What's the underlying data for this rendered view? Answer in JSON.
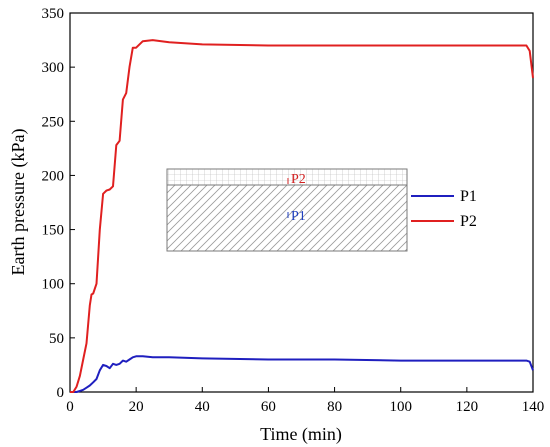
{
  "chart_data": {
    "type": "line",
    "title": "",
    "xlabel": "Time (min)",
    "ylabel": "Earth pressure (kPa)",
    "xlim": [
      0,
      140
    ],
    "ylim": [
      0,
      350
    ],
    "xticks": [
      0,
      20,
      40,
      60,
      80,
      100,
      120,
      140
    ],
    "yticks": [
      0,
      50,
      100,
      150,
      200,
      250,
      300,
      350
    ],
    "grid": false,
    "legend_position": "center-right",
    "series": [
      {
        "name": "P1",
        "color": "#1f1fbf",
        "x": [
          0,
          2,
          3,
          4,
          5,
          6,
          7,
          8,
          9,
          10,
          11,
          12,
          13,
          14,
          15,
          16,
          17,
          18,
          19,
          20,
          22,
          25,
          30,
          40,
          60,
          80,
          100,
          120,
          138,
          139,
          140
        ],
        "y": [
          0,
          0,
          1,
          2,
          4,
          6,
          9,
          12,
          20,
          25,
          24,
          22,
          26,
          25,
          26,
          29,
          28,
          30,
          32,
          33,
          33,
          32,
          32,
          31,
          30,
          30,
          29,
          29,
          29,
          28,
          20
        ]
      },
      {
        "name": "P2",
        "color": "#e02020",
        "x": [
          0,
          1,
          2,
          3,
          4,
          5,
          6,
          6.5,
          7,
          8,
          9,
          10,
          11,
          12,
          13,
          14,
          15,
          16,
          17,
          18,
          19,
          20,
          22,
          25,
          30,
          40,
          60,
          80,
          100,
          120,
          138,
          139,
          140
        ],
        "y": [
          0,
          0,
          5,
          15,
          30,
          45,
          80,
          90,
          91,
          100,
          150,
          183,
          186,
          187,
          190,
          228,
          232,
          270,
          276,
          300,
          318,
          318,
          324,
          325,
          323,
          321,
          320,
          320,
          320,
          320,
          320,
          315,
          290
        ]
      }
    ],
    "inset": {
      "top_label": "P2",
      "bottom_label": "P1"
    }
  }
}
